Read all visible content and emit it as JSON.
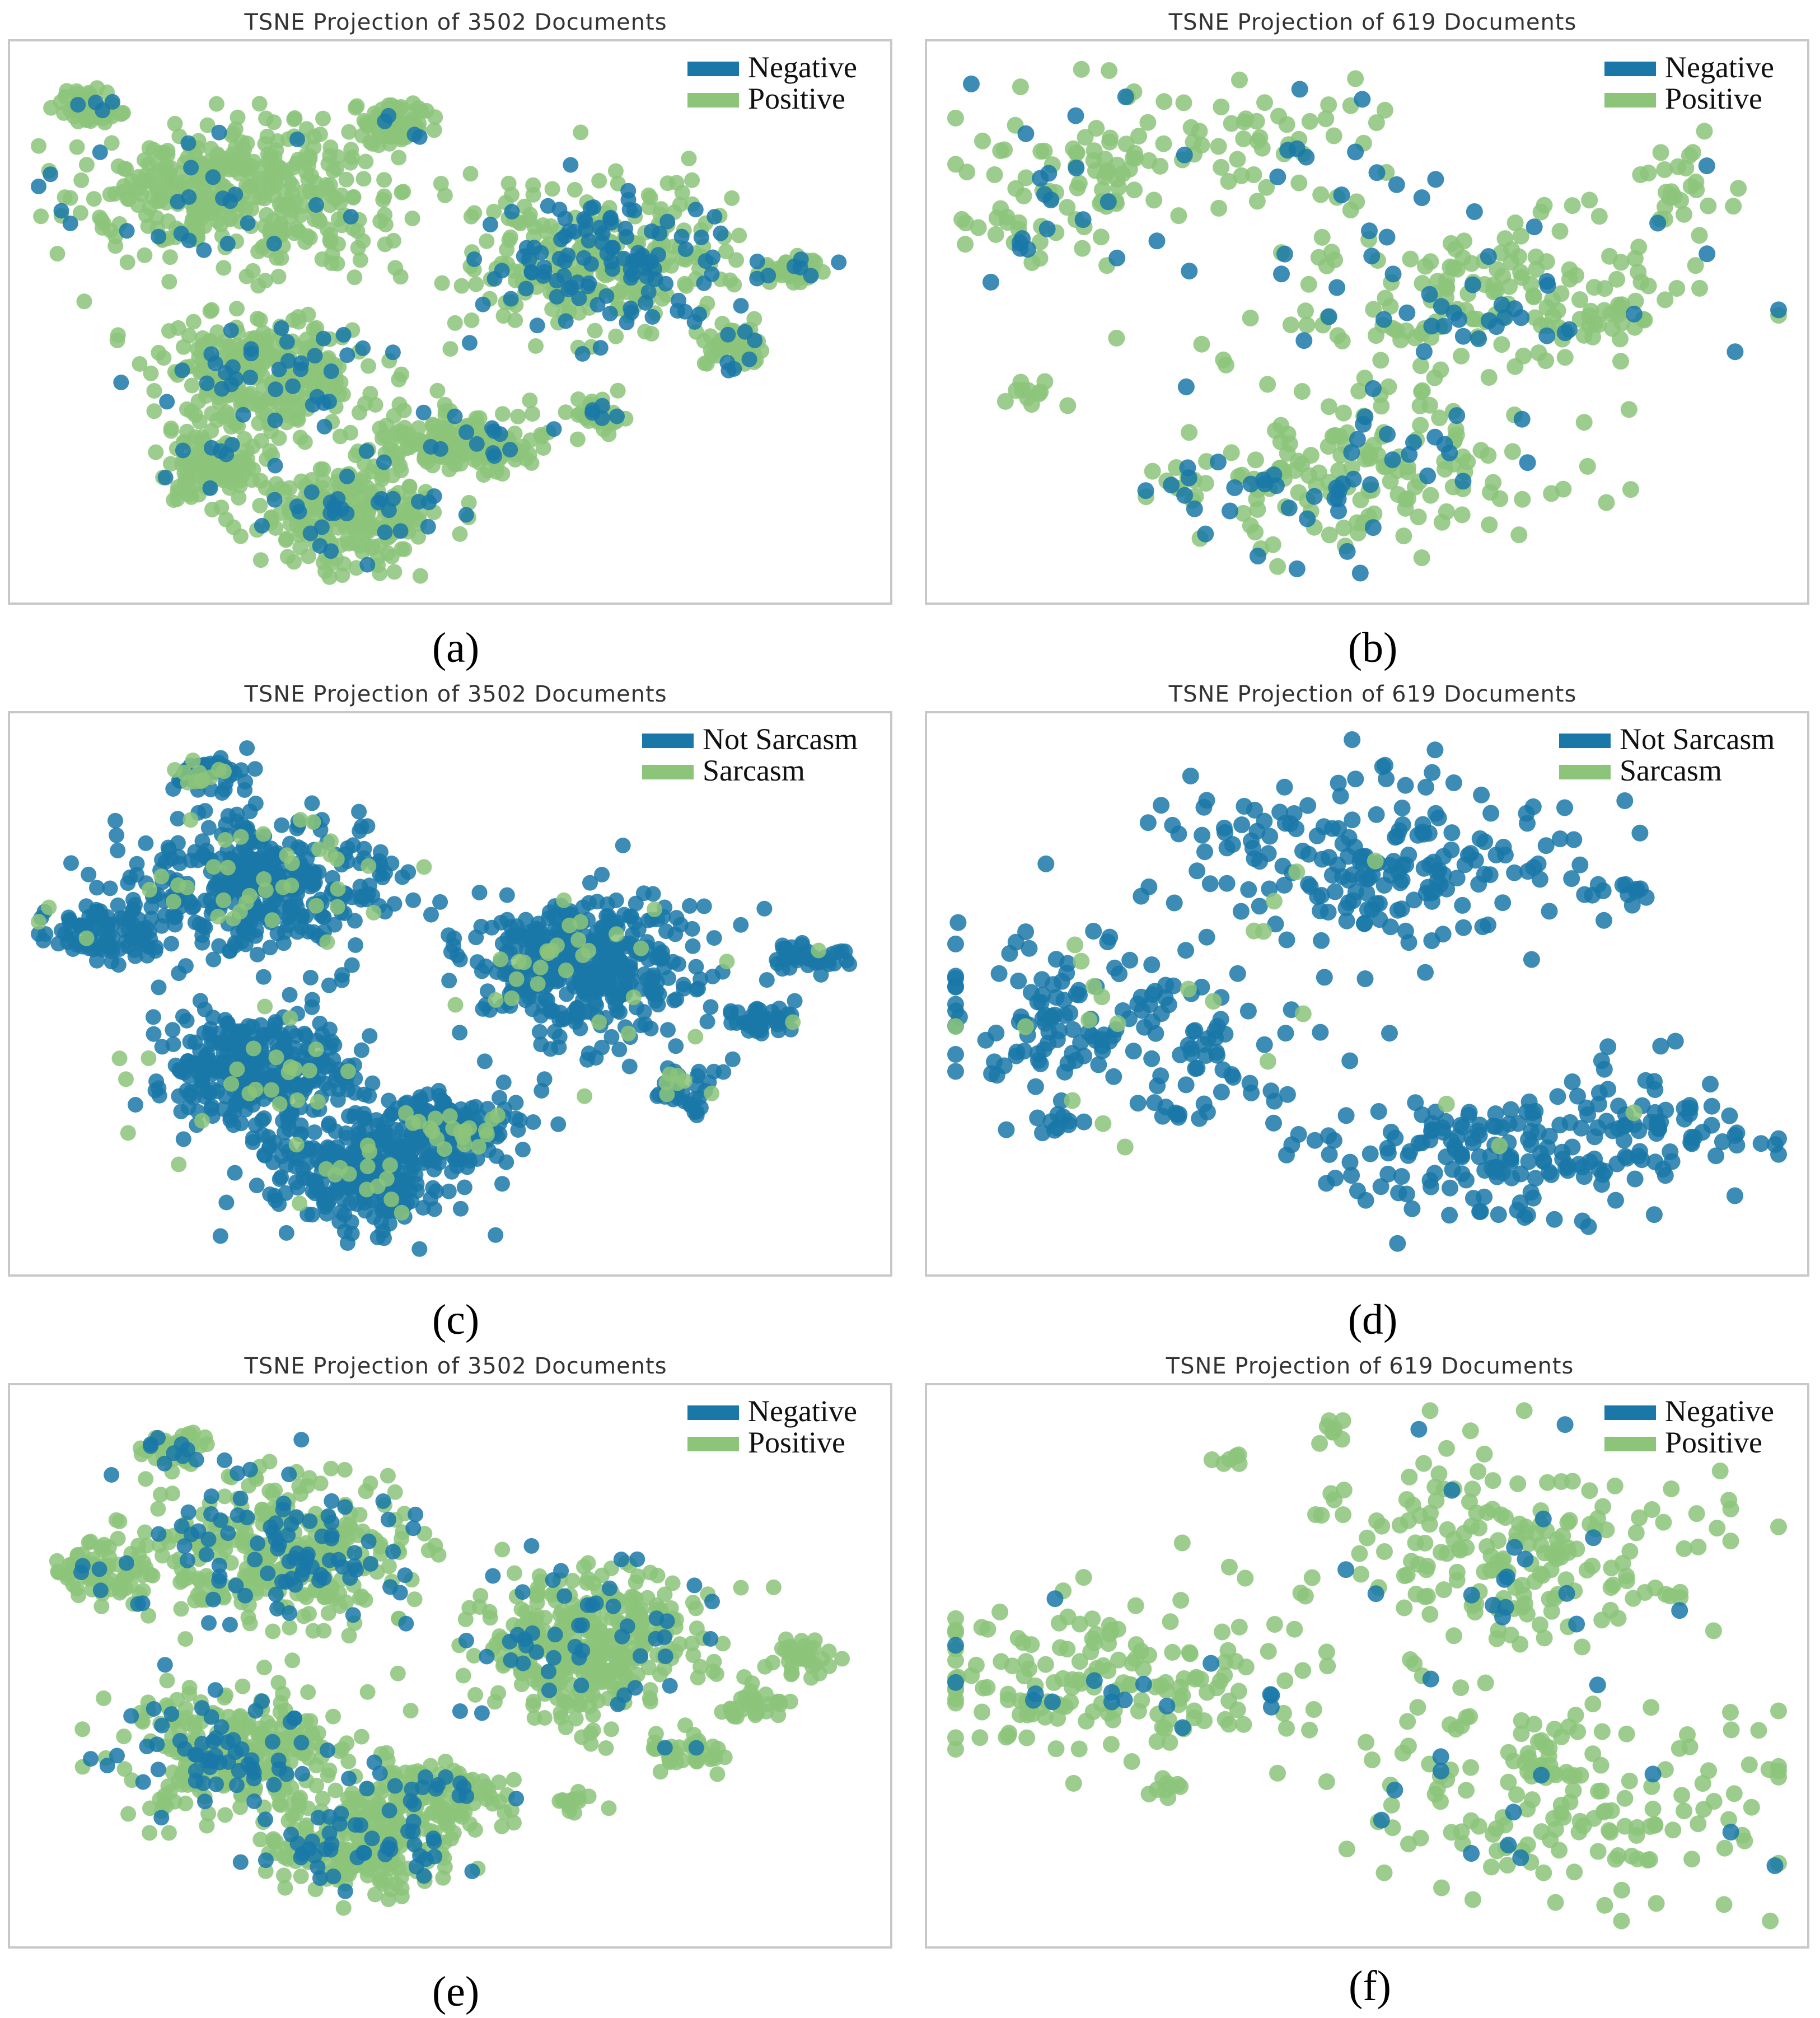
{
  "colors": {
    "blue": "#1f77b4",
    "blue_display": "#1a78a8",
    "green": "#8cc47a",
    "frame": "#c8c8c8"
  },
  "chart_data": [
    {
      "id": "a",
      "type": "scatter",
      "title": "TSNE Projection of 3502 Documents",
      "caption": "(a)",
      "n_points": 3502,
      "legend": [
        "Negative",
        "Positive"
      ],
      "legend_position": "top-right",
      "series_colors": [
        "blue",
        "green"
      ],
      "xlim": [
        0,
        100
      ],
      "ylim": [
        0,
        100
      ],
      "clusters": [
        {
          "x": 7,
          "y": 91,
          "sx": 2.0,
          "sy": 1.6,
          "n": 60,
          "frac": 0.1
        },
        {
          "x": 24,
          "y": 74,
          "sx": 9.0,
          "sy": 7.0,
          "n": 420,
          "frac": 0.07
        },
        {
          "x": 43,
          "y": 88,
          "sx": 2.5,
          "sy": 2.5,
          "n": 70,
          "frac": 0.08
        },
        {
          "x": 68,
          "y": 62,
          "sx": 7.5,
          "sy": 7.5,
          "n": 380,
          "frac": 0.3
        },
        {
          "x": 91,
          "y": 60,
          "sx": 2.0,
          "sy": 1.6,
          "n": 50,
          "frac": 0.1
        },
        {
          "x": 84,
          "y": 45,
          "sx": 2.2,
          "sy": 2.0,
          "n": 50,
          "frac": 0.15
        },
        {
          "x": 28,
          "y": 40,
          "sx": 6.5,
          "sy": 5.5,
          "n": 300,
          "frac": 0.1
        },
        {
          "x": 50,
          "y": 27,
          "sx": 5.0,
          "sy": 3.0,
          "n": 180,
          "frac": 0.08
        },
        {
          "x": 22,
          "y": 22,
          "sx": 3.5,
          "sy": 3.5,
          "n": 120,
          "frac": 0.1
        },
        {
          "x": 38,
          "y": 13,
          "sx": 5.5,
          "sy": 4.5,
          "n": 260,
          "frac": 0.1
        },
        {
          "x": 68,
          "y": 32,
          "sx": 1.5,
          "sy": 1.5,
          "n": 30,
          "frac": 0.1
        }
      ]
    },
    {
      "id": "b",
      "type": "scatter",
      "title": "TSNE Projection of 619 Documents",
      "caption": "(b)",
      "n_points": 619,
      "legend": [
        "Negative",
        "Positive"
      ],
      "legend_position": "top-right",
      "series_colors": [
        "blue",
        "green"
      ],
      "xlim": [
        0,
        100
      ],
      "ylim": [
        0,
        100
      ],
      "clusters": [
        {
          "x": 13,
          "y": 76,
          "sx": 6.5,
          "sy": 10.0,
          "n": 100,
          "frac": 0.15
        },
        {
          "x": 37,
          "y": 84,
          "sx": 9.0,
          "sy": 6.0,
          "n": 70,
          "frac": 0.18
        },
        {
          "x": 65,
          "y": 55,
          "sx": 13.0,
          "sy": 8.0,
          "n": 210,
          "frac": 0.22
        },
        {
          "x": 49,
          "y": 21,
          "sx": 10.0,
          "sy": 8.0,
          "n": 190,
          "frac": 0.22
        },
        {
          "x": 10,
          "y": 36,
          "sx": 2.0,
          "sy": 1.5,
          "n": 10,
          "frac": 0.0
        },
        {
          "x": 27,
          "y": 18,
          "sx": 2.0,
          "sy": 2.0,
          "n": 12,
          "frac": 0.4
        },
        {
          "x": 88,
          "y": 75,
          "sx": 3.5,
          "sy": 5.0,
          "n": 27,
          "frac": 0.05
        }
      ]
    },
    {
      "id": "c",
      "type": "scatter",
      "title": "TSNE Projection of 3502 Documents",
      "caption": "(c)",
      "n_points": 3502,
      "legend": [
        "Not Sarcasm",
        "Sarcasm"
      ],
      "legend_position": "top-right",
      "series_colors": [
        "blue",
        "green"
      ],
      "xlim": [
        0,
        100
      ],
      "ylim": [
        0,
        100
      ],
      "clusters": [
        {
          "x": 21,
          "y": 93,
          "sx": 2.0,
          "sy": 1.8,
          "n": 50,
          "frac": 0.8
        },
        {
          "x": 28,
          "y": 71,
          "sx": 8.0,
          "sy": 7.0,
          "n": 420,
          "frac": 0.93
        },
        {
          "x": 9,
          "y": 62,
          "sx": 4.0,
          "sy": 2.5,
          "n": 90,
          "frac": 0.93
        },
        {
          "x": 66,
          "y": 55,
          "sx": 7.0,
          "sy": 7.0,
          "n": 420,
          "frac": 0.93
        },
        {
          "x": 93,
          "y": 57,
          "sx": 2.0,
          "sy": 1.5,
          "n": 40,
          "frac": 0.97
        },
        {
          "x": 87,
          "y": 45,
          "sx": 2.5,
          "sy": 1.8,
          "n": 40,
          "frac": 0.97
        },
        {
          "x": 27,
          "y": 35,
          "sx": 6.0,
          "sy": 6.0,
          "n": 340,
          "frac": 0.93
        },
        {
          "x": 50,
          "y": 24,
          "sx": 5.0,
          "sy": 3.0,
          "n": 160,
          "frac": 0.92
        },
        {
          "x": 40,
          "y": 15,
          "sx": 6.0,
          "sy": 5.0,
          "n": 280,
          "frac": 0.93
        },
        {
          "x": 78,
          "y": 32,
          "sx": 2.5,
          "sy": 2.0,
          "n": 40,
          "frac": 0.9
        }
      ]
    },
    {
      "id": "d",
      "type": "scatter",
      "title": "TSNE Projection of 619 Documents",
      "caption": "(d)",
      "n_points": 619,
      "legend": [
        "Not Sarcasm",
        "Sarcasm"
      ],
      "legend_position": "top-right",
      "series_colors": [
        "blue",
        "green"
      ],
      "xlim": [
        0,
        100
      ],
      "ylim": [
        0,
        100
      ],
      "clusters": [
        {
          "x": 51,
          "y": 76,
          "sx": 13.0,
          "sy": 8.5,
          "n": 200,
          "frac": 0.98
        },
        {
          "x": 20,
          "y": 44,
          "sx": 12.0,
          "sy": 8.0,
          "n": 180,
          "frac": 0.9
        },
        {
          "x": 65,
          "y": 19,
          "sx": 11.0,
          "sy": 6.5,
          "n": 160,
          "frac": 0.98
        },
        {
          "x": 85,
          "y": 25,
          "sx": 6.0,
          "sy": 7.0,
          "n": 60,
          "frac": 0.97
        },
        {
          "x": 13,
          "y": 26,
          "sx": 1.5,
          "sy": 1.5,
          "n": 10,
          "frac": 1.0
        },
        {
          "x": 27,
          "y": 27,
          "sx": 1.2,
          "sy": 1.0,
          "n": 6,
          "frac": 0.8
        },
        {
          "x": 79,
          "y": 69,
          "sx": 3.0,
          "sy": 1.5,
          "n": 12,
          "frac": 1.0
        }
      ]
    },
    {
      "id": "e",
      "type": "scatter",
      "title": "TSNE Projection of 3502 Documents",
      "caption": "(e)",
      "n_points": 3502,
      "legend": [
        "Negative",
        "Positive"
      ],
      "legend_position": "top-right",
      "series_colors": [
        "blue",
        "green"
      ],
      "xlim": [
        0,
        100
      ],
      "ylim": [
        0,
        100
      ],
      "clusters": [
        {
          "x": 17,
          "y": 92,
          "sx": 2.0,
          "sy": 1.5,
          "n": 45,
          "frac": 0.15
        },
        {
          "x": 30,
          "y": 72,
          "sx": 8.0,
          "sy": 7.0,
          "n": 420,
          "frac": 0.2
        },
        {
          "x": 9,
          "y": 68,
          "sx": 3.0,
          "sy": 2.5,
          "n": 80,
          "frac": 0.08
        },
        {
          "x": 67,
          "y": 54,
          "sx": 7.0,
          "sy": 7.0,
          "n": 420,
          "frac": 0.12
        },
        {
          "x": 92,
          "y": 52,
          "sx": 2.0,
          "sy": 1.5,
          "n": 40,
          "frac": 0.0
        },
        {
          "x": 86,
          "y": 42,
          "sx": 2.0,
          "sy": 1.5,
          "n": 30,
          "frac": 0.0
        },
        {
          "x": 24,
          "y": 33,
          "sx": 6.0,
          "sy": 5.5,
          "n": 330,
          "frac": 0.17
        },
        {
          "x": 48,
          "y": 25,
          "sx": 4.5,
          "sy": 3.0,
          "n": 150,
          "frac": 0.2
        },
        {
          "x": 39,
          "y": 15,
          "sx": 5.5,
          "sy": 4.5,
          "n": 260,
          "frac": 0.17
        },
        {
          "x": 78,
          "y": 33,
          "sx": 2.5,
          "sy": 2.0,
          "n": 40,
          "frac": 0.03
        },
        {
          "x": 65,
          "y": 24,
          "sx": 1.5,
          "sy": 1.2,
          "n": 15,
          "frac": 0.1
        }
      ]
    },
    {
      "id": "f",
      "type": "scatter",
      "title": "TSNE Projection of 619 Documents",
      "caption": "(f)",
      "n_points": 619,
      "legend": [
        "Negative",
        "Positive"
      ],
      "legend_position": "top-right",
      "series_colors": [
        "blue",
        "green"
      ],
      "xlim": [
        0,
        100
      ],
      "ylim": [
        0,
        100
      ],
      "clusters": [
        {
          "x": 67,
          "y": 72,
          "sx": 12.0,
          "sy": 10.0,
          "n": 210,
          "frac": 0.07
        },
        {
          "x": 20,
          "y": 47,
          "sx": 12.0,
          "sy": 8.0,
          "n": 180,
          "frac": 0.1
        },
        {
          "x": 74,
          "y": 24,
          "sx": 13.0,
          "sy": 10.0,
          "n": 180,
          "frac": 0.08
        },
        {
          "x": 46,
          "y": 95,
          "sx": 1.5,
          "sy": 1.5,
          "n": 8,
          "frac": 0.0
        },
        {
          "x": 33,
          "y": 90,
          "sx": 1.2,
          "sy": 1.2,
          "n": 6,
          "frac": 0.0
        },
        {
          "x": 26,
          "y": 27,
          "sx": 1.5,
          "sy": 1.0,
          "n": 8,
          "frac": 0.0
        }
      ]
    }
  ]
}
